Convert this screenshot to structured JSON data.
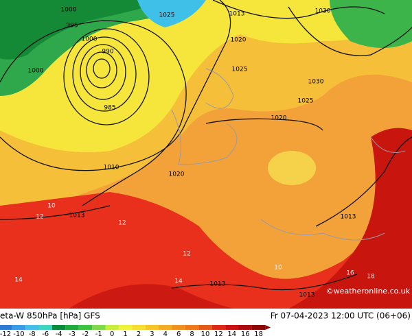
{
  "header": {
    "title": "eta-W 850hPa [hPa] GFS",
    "datetime": "Fr 07-04-2023 12:00 UTC (06+06)",
    "credit": "©weatheronline.co.uk"
  },
  "isobar_labels": [
    1000,
    995,
    1000,
    990,
    1000,
    985,
    1010,
    1020,
    1013,
    1013,
    1020,
    1025,
    1030,
    1025,
    1020,
    1030,
    1013,
    1013,
    1013,
    1025
  ],
  "temperature_labels": [
    12,
    12,
    14,
    12,
    10,
    16,
    18,
    14,
    10
  ],
  "colorbar": {
    "labels": [
      -12,
      -10,
      -8,
      -6,
      -4,
      -3,
      -2,
      -1,
      0,
      1,
      2,
      3,
      4,
      6,
      8,
      10,
      12,
      14,
      16,
      18
    ],
    "colors": [
      "#2e7bd6",
      "#3a9ae6",
      "#44bde8",
      "#3cd6c0",
      "#0a8a3a",
      "#1faa3c",
      "#3cc23e",
      "#7ed84a",
      "#c6ee3c",
      "#f2f23a",
      "#f8dc30",
      "#f8c428",
      "#f5aa24",
      "#f09020",
      "#ec7a1c",
      "#e45a18",
      "#dc2a14",
      "#c81410",
      "#a80c0c",
      "#8a0808"
    ]
  }
}
